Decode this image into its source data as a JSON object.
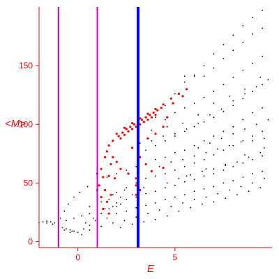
{
  "chart_data": {
    "type": "scatter",
    "xlabel": "E",
    "ylabel": "<M>",
    "xlim": [
      -2,
      10
    ],
    "ylim": [
      -5,
      200
    ],
    "x_ticks": [
      0,
      5
    ],
    "y_ticks": [
      0,
      50,
      100,
      150
    ],
    "grid": false,
    "legend": "none",
    "colors": {
      "axes": "#ff0000",
      "black_points": "#000000",
      "red_points": "#ff0000",
      "magenta_lines": "#cc00cc",
      "blue_line": "#0000ee"
    },
    "vertical_lines": [
      {
        "x": -1.0,
        "color": "#cc00cc"
      },
      {
        "x": 1.0,
        "color": "#cc00cc"
      },
      {
        "x": 3.1,
        "color": "#0000ee"
      }
    ],
    "series": [
      {
        "color": "#000000",
        "points": [
          [
            -2.0,
            16
          ],
          [
            -1.8,
            17
          ],
          [
            -1.6,
            17.5
          ],
          [
            -1.4,
            17
          ],
          [
            -1.2,
            16
          ],
          [
            -1.0,
            14
          ],
          [
            -0.8,
            12
          ],
          [
            -0.6,
            11
          ],
          [
            -0.4,
            10
          ],
          [
            -0.2,
            9
          ],
          [
            -1.6,
            16
          ],
          [
            -1.3,
            15
          ],
          [
            -1.0,
            12
          ],
          [
            -0.7,
            10
          ],
          [
            -0.4,
            8
          ],
          [
            -0.9,
            20
          ],
          [
            -0.7,
            26
          ],
          [
            -0.5,
            32
          ],
          [
            -0.2,
            38
          ],
          [
            0.1,
            42
          ],
          [
            0.5,
            47
          ],
          [
            1.0,
            51
          ],
          [
            1.5,
            55
          ],
          [
            2.0,
            58
          ],
          [
            2.5,
            61
          ],
          [
            -0.6,
            18
          ],
          [
            -0.2,
            20
          ],
          [
            0.2,
            22
          ],
          [
            0.6,
            24
          ],
          [
            1.0,
            26
          ],
          [
            1.4,
            28
          ],
          [
            1.8,
            30
          ],
          [
            2.2,
            32
          ],
          [
            -0.3,
            9
          ],
          [
            0.0,
            8
          ],
          [
            0.3,
            11
          ],
          [
            0.6,
            14
          ],
          [
            0.9,
            18
          ],
          [
            0.2,
            6
          ],
          [
            0.6,
            10
          ],
          [
            1.0,
            16
          ],
          [
            4.0,
            106
          ],
          [
            4.5,
            116
          ],
          [
            5.0,
            126
          ],
          [
            5.5,
            136
          ],
          [
            6.0,
            141
          ],
          [
            6.5,
            150
          ],
          [
            7.0,
            160
          ],
          [
            7.5,
            168
          ],
          [
            8.0,
            176
          ],
          [
            8.5,
            184
          ],
          [
            9.0,
            191
          ],
          [
            9.5,
            197
          ],
          [
            5.5,
            141
          ],
          [
            6.0,
            142
          ],
          [
            6.5,
            141
          ],
          [
            7.0,
            148
          ],
          [
            7.5,
            156
          ],
          [
            8.0,
            163
          ],
          [
            8.5,
            170
          ],
          [
            9.0,
            177
          ],
          [
            9.5,
            182
          ],
          [
            4.5,
            104
          ],
          [
            5.0,
            110
          ],
          [
            5.5,
            114
          ],
          [
            6.0,
            118
          ],
          [
            6.5,
            123
          ],
          [
            7.0,
            128
          ],
          [
            7.5,
            134
          ],
          [
            8.0,
            140
          ],
          [
            8.5,
            146
          ],
          [
            9.0,
            152
          ],
          [
            9.5,
            158
          ],
          [
            3.5,
            78
          ],
          [
            4.0,
            82
          ],
          [
            4.5,
            86
          ],
          [
            5.0,
            90
          ],
          [
            5.5,
            94
          ],
          [
            6.0,
            98
          ],
          [
            6.5,
            102
          ],
          [
            7.0,
            106
          ],
          [
            7.5,
            111
          ],
          [
            8.0,
            116
          ],
          [
            8.5,
            122
          ],
          [
            9.0,
            128
          ],
          [
            9.5,
            134
          ],
          [
            3.0,
            64
          ],
          [
            3.5,
            66
          ],
          [
            4.0,
            70
          ],
          [
            4.5,
            72
          ],
          [
            5.0,
            76
          ],
          [
            5.5,
            78
          ],
          [
            6.0,
            82
          ],
          [
            6.5,
            86
          ],
          [
            7.0,
            90
          ],
          [
            7.5,
            94
          ],
          [
            8.0,
            98
          ],
          [
            8.5,
            104
          ],
          [
            9.0,
            110
          ],
          [
            9.5,
            114
          ],
          [
            2.0,
            42
          ],
          [
            2.5,
            46
          ],
          [
            3.0,
            50
          ],
          [
            3.5,
            54
          ],
          [
            4.0,
            56
          ],
          [
            4.5,
            58
          ],
          [
            5.0,
            61
          ],
          [
            5.5,
            64
          ],
          [
            6.0,
            67
          ],
          [
            6.5,
            70
          ],
          [
            7.0,
            74
          ],
          [
            7.5,
            78
          ],
          [
            8.0,
            82
          ],
          [
            8.5,
            86
          ],
          [
            9.0,
            90
          ],
          [
            9.5,
            94
          ],
          [
            2.0,
            33
          ],
          [
            2.5,
            36
          ],
          [
            3.0,
            38
          ],
          [
            3.5,
            41
          ],
          [
            4.0,
            43
          ],
          [
            4.5,
            46
          ],
          [
            5.0,
            48
          ],
          [
            5.5,
            51
          ],
          [
            6.0,
            53
          ],
          [
            6.5,
            56
          ],
          [
            7.0,
            58
          ],
          [
            7.5,
            61
          ],
          [
            8.0,
            64
          ],
          [
            8.5,
            67
          ],
          [
            9.0,
            70
          ],
          [
            9.5,
            73
          ],
          [
            1.5,
            20
          ],
          [
            2.0,
            24
          ],
          [
            2.5,
            26
          ],
          [
            3.0,
            29
          ],
          [
            3.5,
            31
          ],
          [
            4.0,
            33
          ],
          [
            4.5,
            36
          ],
          [
            5.0,
            38
          ],
          [
            5.5,
            40
          ],
          [
            6.0,
            43
          ],
          [
            6.5,
            45
          ],
          [
            7.0,
            47
          ],
          [
            7.5,
            50
          ],
          [
            8.0,
            52
          ],
          [
            8.5,
            55
          ],
          [
            9.0,
            58
          ],
          [
            9.5,
            60
          ],
          [
            1.2,
            13
          ],
          [
            1.8,
            16
          ],
          [
            2.4,
            18
          ],
          [
            3.0,
            21
          ],
          [
            3.6,
            24
          ],
          [
            4.2,
            27
          ],
          [
            4.8,
            30
          ],
          [
            5.4,
            33
          ],
          [
            6.0,
            36
          ],
          [
            6.6,
            38
          ],
          [
            7.2,
            41
          ],
          [
            7.8,
            44
          ],
          [
            8.4,
            47
          ],
          [
            9.0,
            50
          ],
          [
            9.6,
            54
          ],
          [
            2.2,
            12
          ],
          [
            2.8,
            15
          ],
          [
            3.4,
            17
          ],
          [
            4.0,
            19
          ],
          [
            4.6,
            22
          ],
          [
            5.2,
            26
          ],
          [
            5.8,
            29
          ],
          [
            6.4,
            32
          ],
          [
            7.0,
            34
          ],
          [
            7.6,
            37
          ],
          [
            8.2,
            40
          ],
          [
            8.8,
            43
          ],
          [
            9.4,
            46
          ],
          [
            3.2,
            84
          ],
          [
            3.8,
            86
          ],
          [
            4.4,
            90
          ],
          [
            5.0,
            92
          ],
          [
            5.6,
            96
          ],
          [
            6.2,
            101
          ],
          [
            6.8,
            108
          ],
          [
            7.4,
            113
          ],
          [
            8.0,
            120
          ],
          [
            8.6,
            126
          ],
          [
            9.2,
            132
          ],
          [
            9.8,
            138
          ],
          [
            6.2,
            80
          ],
          [
            6.8,
            84
          ],
          [
            7.4,
            88
          ],
          [
            8.0,
            92
          ],
          [
            8.6,
            96
          ],
          [
            9.2,
            100
          ],
          [
            9.8,
            104
          ],
          [
            4.2,
            64
          ],
          [
            4.8,
            68
          ],
          [
            5.4,
            70
          ],
          [
            6.0,
            73
          ],
          [
            6.6,
            76
          ],
          [
            7.2,
            79
          ],
          [
            7.8,
            82
          ],
          [
            8.4,
            85
          ],
          [
            9.0,
            86
          ],
          [
            9.6,
            88
          ],
          [
            3.8,
            95
          ],
          [
            4.6,
            98
          ],
          [
            5.4,
            101
          ],
          [
            6.2,
            108
          ],
          [
            7.0,
            118
          ],
          [
            7.8,
            124
          ],
          [
            8.6,
            130
          ],
          [
            9.4,
            140
          ],
          [
            5.2,
            54
          ],
          [
            5.8,
            57
          ],
          [
            6.4,
            60
          ],
          [
            7.0,
            62
          ],
          [
            7.6,
            65
          ],
          [
            8.2,
            68
          ],
          [
            8.8,
            72
          ],
          [
            9.4,
            76
          ],
          [
            1.6,
            36
          ],
          [
            2.2,
            38
          ],
          [
            2.8,
            40
          ],
          [
            3.4,
            46
          ],
          [
            4.6,
            50
          ],
          [
            5.6,
            56
          ],
          [
            6.6,
            62
          ],
          [
            7.6,
            66
          ],
          [
            8.6,
            74
          ],
          [
            9.6,
            80
          ],
          [
            0.4,
            16
          ],
          [
            0.8,
            20
          ],
          [
            1.2,
            24
          ],
          [
            1.6,
            28
          ],
          [
            2.0,
            30
          ],
          [
            0.6,
            30
          ],
          [
            1.2,
            34
          ],
          [
            1.8,
            40
          ],
          [
            2.4,
            44
          ]
        ]
      },
      {
        "color": "#ff0000",
        "points": [
          [
            2.1,
            90
          ],
          [
            2.3,
            93
          ],
          [
            2.5,
            96
          ],
          [
            2.7,
            98
          ],
          [
            2.9,
            100
          ],
          [
            3.1,
            102
          ],
          [
            3.3,
            104
          ],
          [
            3.5,
            106
          ],
          [
            3.7,
            108
          ],
          [
            3.9,
            110
          ],
          [
            4.1,
            112
          ],
          [
            4.3,
            114
          ],
          [
            2.2,
            88
          ],
          [
            2.4,
            91
          ],
          [
            2.6,
            94
          ],
          [
            2.8,
            96
          ],
          [
            3.0,
            98
          ],
          [
            3.2,
            100
          ],
          [
            3.4,
            102
          ],
          [
            3.6,
            104
          ],
          [
            3.8,
            106
          ],
          [
            4.0,
            108
          ],
          [
            2.0,
            92
          ],
          [
            2.4,
            97
          ],
          [
            2.8,
            101
          ],
          [
            3.2,
            105
          ],
          [
            3.6,
            109
          ],
          [
            4.0,
            113
          ],
          [
            4.4,
            117
          ],
          [
            4.8,
            122
          ],
          [
            5.2,
            126
          ],
          [
            5.6,
            130
          ],
          [
            1.6,
            82
          ],
          [
            1.8,
            86
          ],
          [
            1.5,
            77
          ],
          [
            1.8,
            72
          ],
          [
            1.4,
            72
          ],
          [
            2.0,
            68
          ],
          [
            1.7,
            66
          ],
          [
            1.2,
            62
          ],
          [
            1.0,
            58
          ],
          [
            1.3,
            55
          ],
          [
            1.6,
            56
          ],
          [
            1.9,
            54
          ],
          [
            1.1,
            48
          ],
          [
            1.4,
            44
          ],
          [
            1.2,
            38
          ],
          [
            1.5,
            34
          ],
          [
            1.7,
            40
          ],
          [
            1.0,
            44
          ],
          [
            1.3,
            28
          ],
          [
            1.6,
            24
          ],
          [
            2.2,
            62
          ],
          [
            2.6,
            58
          ],
          [
            3.0,
            54
          ],
          [
            3.2,
            72
          ],
          [
            2.8,
            80
          ],
          [
            3.5,
            66
          ],
          [
            3.8,
            60
          ],
          [
            4.4,
            63
          ],
          [
            3.0,
            48
          ],
          [
            3.2,
            44
          ],
          [
            3.0,
            40
          ],
          [
            4.0,
            92
          ],
          [
            3.6,
            88
          ],
          [
            4.4,
            98
          ],
          [
            4.6,
            106
          ],
          [
            4.9,
            118
          ],
          [
            5.4,
            124
          ]
        ]
      }
    ]
  }
}
